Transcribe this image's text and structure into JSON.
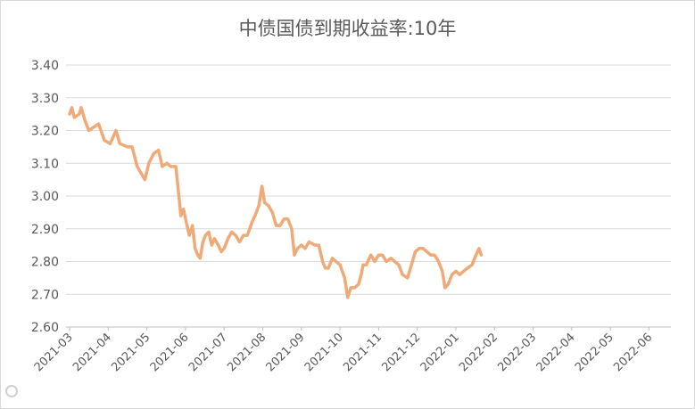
{
  "chart_data": {
    "type": "line",
    "title": "中债国债到期收益率:10年",
    "xlabel": "",
    "ylabel": "",
    "ylim": [
      2.6,
      3.4
    ],
    "yticks": [
      "2.60",
      "2.70",
      "2.80",
      "2.90",
      "3.00",
      "3.10",
      "3.20",
      "3.30",
      "3.40"
    ],
    "xticks": [
      "2021-03",
      "2021-04",
      "2021-05",
      "2021-06",
      "2021-07",
      "2021-08",
      "2021-09",
      "2021-10",
      "2021-11",
      "2021-12",
      "2022-01",
      "2022-02",
      "2022-03",
      "2022-04",
      "2022-05",
      "2022-06"
    ],
    "grid": true,
    "legend": "none",
    "line_color": "#efaa78",
    "series": [
      {
        "values": [
          [
            1.0,
            3.25
          ],
          [
            1.06,
            3.27
          ],
          [
            1.12,
            3.24
          ],
          [
            1.25,
            3.25
          ],
          [
            1.3,
            3.27
          ],
          [
            1.4,
            3.23
          ],
          [
            1.5,
            3.2
          ],
          [
            1.62,
            3.21
          ],
          [
            1.75,
            3.22
          ],
          [
            1.9,
            3.17
          ],
          [
            2.05,
            3.16
          ],
          [
            2.2,
            3.2
          ],
          [
            2.3,
            3.16
          ],
          [
            2.5,
            3.15
          ],
          [
            2.62,
            3.15
          ],
          [
            2.75,
            3.09
          ],
          [
            2.85,
            3.07
          ],
          [
            2.95,
            3.05
          ],
          [
            3.05,
            3.1
          ],
          [
            3.18,
            3.13
          ],
          [
            3.3,
            3.14
          ],
          [
            3.4,
            3.09
          ],
          [
            3.52,
            3.1
          ],
          [
            3.62,
            3.09
          ],
          [
            3.75,
            3.09
          ],
          [
            3.83,
            3.0
          ],
          [
            3.88,
            2.94
          ],
          [
            3.95,
            2.96
          ],
          [
            4.02,
            2.92
          ],
          [
            4.1,
            2.88
          ],
          [
            4.18,
            2.91
          ],
          [
            4.25,
            2.84
          ],
          [
            4.32,
            2.82
          ],
          [
            4.38,
            2.81
          ],
          [
            4.45,
            2.86
          ],
          [
            4.52,
            2.88
          ],
          [
            4.6,
            2.89
          ],
          [
            4.68,
            2.85
          ],
          [
            4.75,
            2.87
          ],
          [
            4.85,
            2.85
          ],
          [
            4.93,
            2.83
          ],
          [
            5.0,
            2.84
          ],
          [
            5.1,
            2.87
          ],
          [
            5.2,
            2.89
          ],
          [
            5.3,
            2.88
          ],
          [
            5.4,
            2.86
          ],
          [
            5.5,
            2.88
          ],
          [
            5.6,
            2.88
          ],
          [
            5.72,
            2.92
          ],
          [
            5.8,
            2.94
          ],
          [
            5.9,
            2.97
          ],
          [
            5.98,
            3.03
          ],
          [
            6.05,
            2.98
          ],
          [
            6.15,
            2.97
          ],
          [
            6.25,
            2.95
          ],
          [
            6.35,
            2.91
          ],
          [
            6.45,
            2.91
          ],
          [
            6.55,
            2.93
          ],
          [
            6.65,
            2.93
          ],
          [
            6.75,
            2.9
          ],
          [
            6.82,
            2.82
          ],
          [
            6.9,
            2.84
          ],
          [
            7.0,
            2.85
          ],
          [
            7.1,
            2.84
          ],
          [
            7.2,
            2.86
          ],
          [
            7.35,
            2.85
          ],
          [
            7.45,
            2.85
          ],
          [
            7.55,
            2.8
          ],
          [
            7.62,
            2.78
          ],
          [
            7.7,
            2.78
          ],
          [
            7.8,
            2.81
          ],
          [
            7.9,
            2.8
          ],
          [
            8.0,
            2.79
          ],
          [
            8.12,
            2.75
          ],
          [
            8.2,
            2.69
          ],
          [
            8.28,
            2.72
          ],
          [
            8.38,
            2.72
          ],
          [
            8.48,
            2.73
          ],
          [
            8.55,
            2.76
          ],
          [
            8.6,
            2.79
          ],
          [
            8.68,
            2.79
          ],
          [
            8.8,
            2.82
          ],
          [
            8.9,
            2.8
          ],
          [
            9.0,
            2.82
          ],
          [
            9.1,
            2.82
          ],
          [
            9.2,
            2.8
          ],
          [
            9.32,
            2.81
          ],
          [
            9.42,
            2.8
          ],
          [
            9.52,
            2.79
          ],
          [
            9.62,
            2.76
          ],
          [
            9.75,
            2.75
          ],
          [
            9.85,
            2.79
          ],
          [
            9.95,
            2.83
          ],
          [
            10.05,
            2.84
          ],
          [
            10.15,
            2.84
          ],
          [
            10.25,
            2.83
          ],
          [
            10.35,
            2.82
          ],
          [
            10.45,
            2.82
          ],
          [
            10.55,
            2.8
          ],
          [
            10.65,
            2.77
          ],
          [
            10.72,
            2.72
          ],
          [
            10.8,
            2.73
          ],
          [
            10.9,
            2.76
          ],
          [
            11.0,
            2.77
          ],
          [
            11.1,
            2.76
          ],
          [
            11.2,
            2.77
          ],
          [
            11.3,
            2.78
          ],
          [
            11.42,
            2.79
          ],
          [
            11.52,
            2.82
          ],
          [
            11.6,
            2.84
          ],
          [
            11.66,
            2.82
          ]
        ]
      }
    ]
  }
}
